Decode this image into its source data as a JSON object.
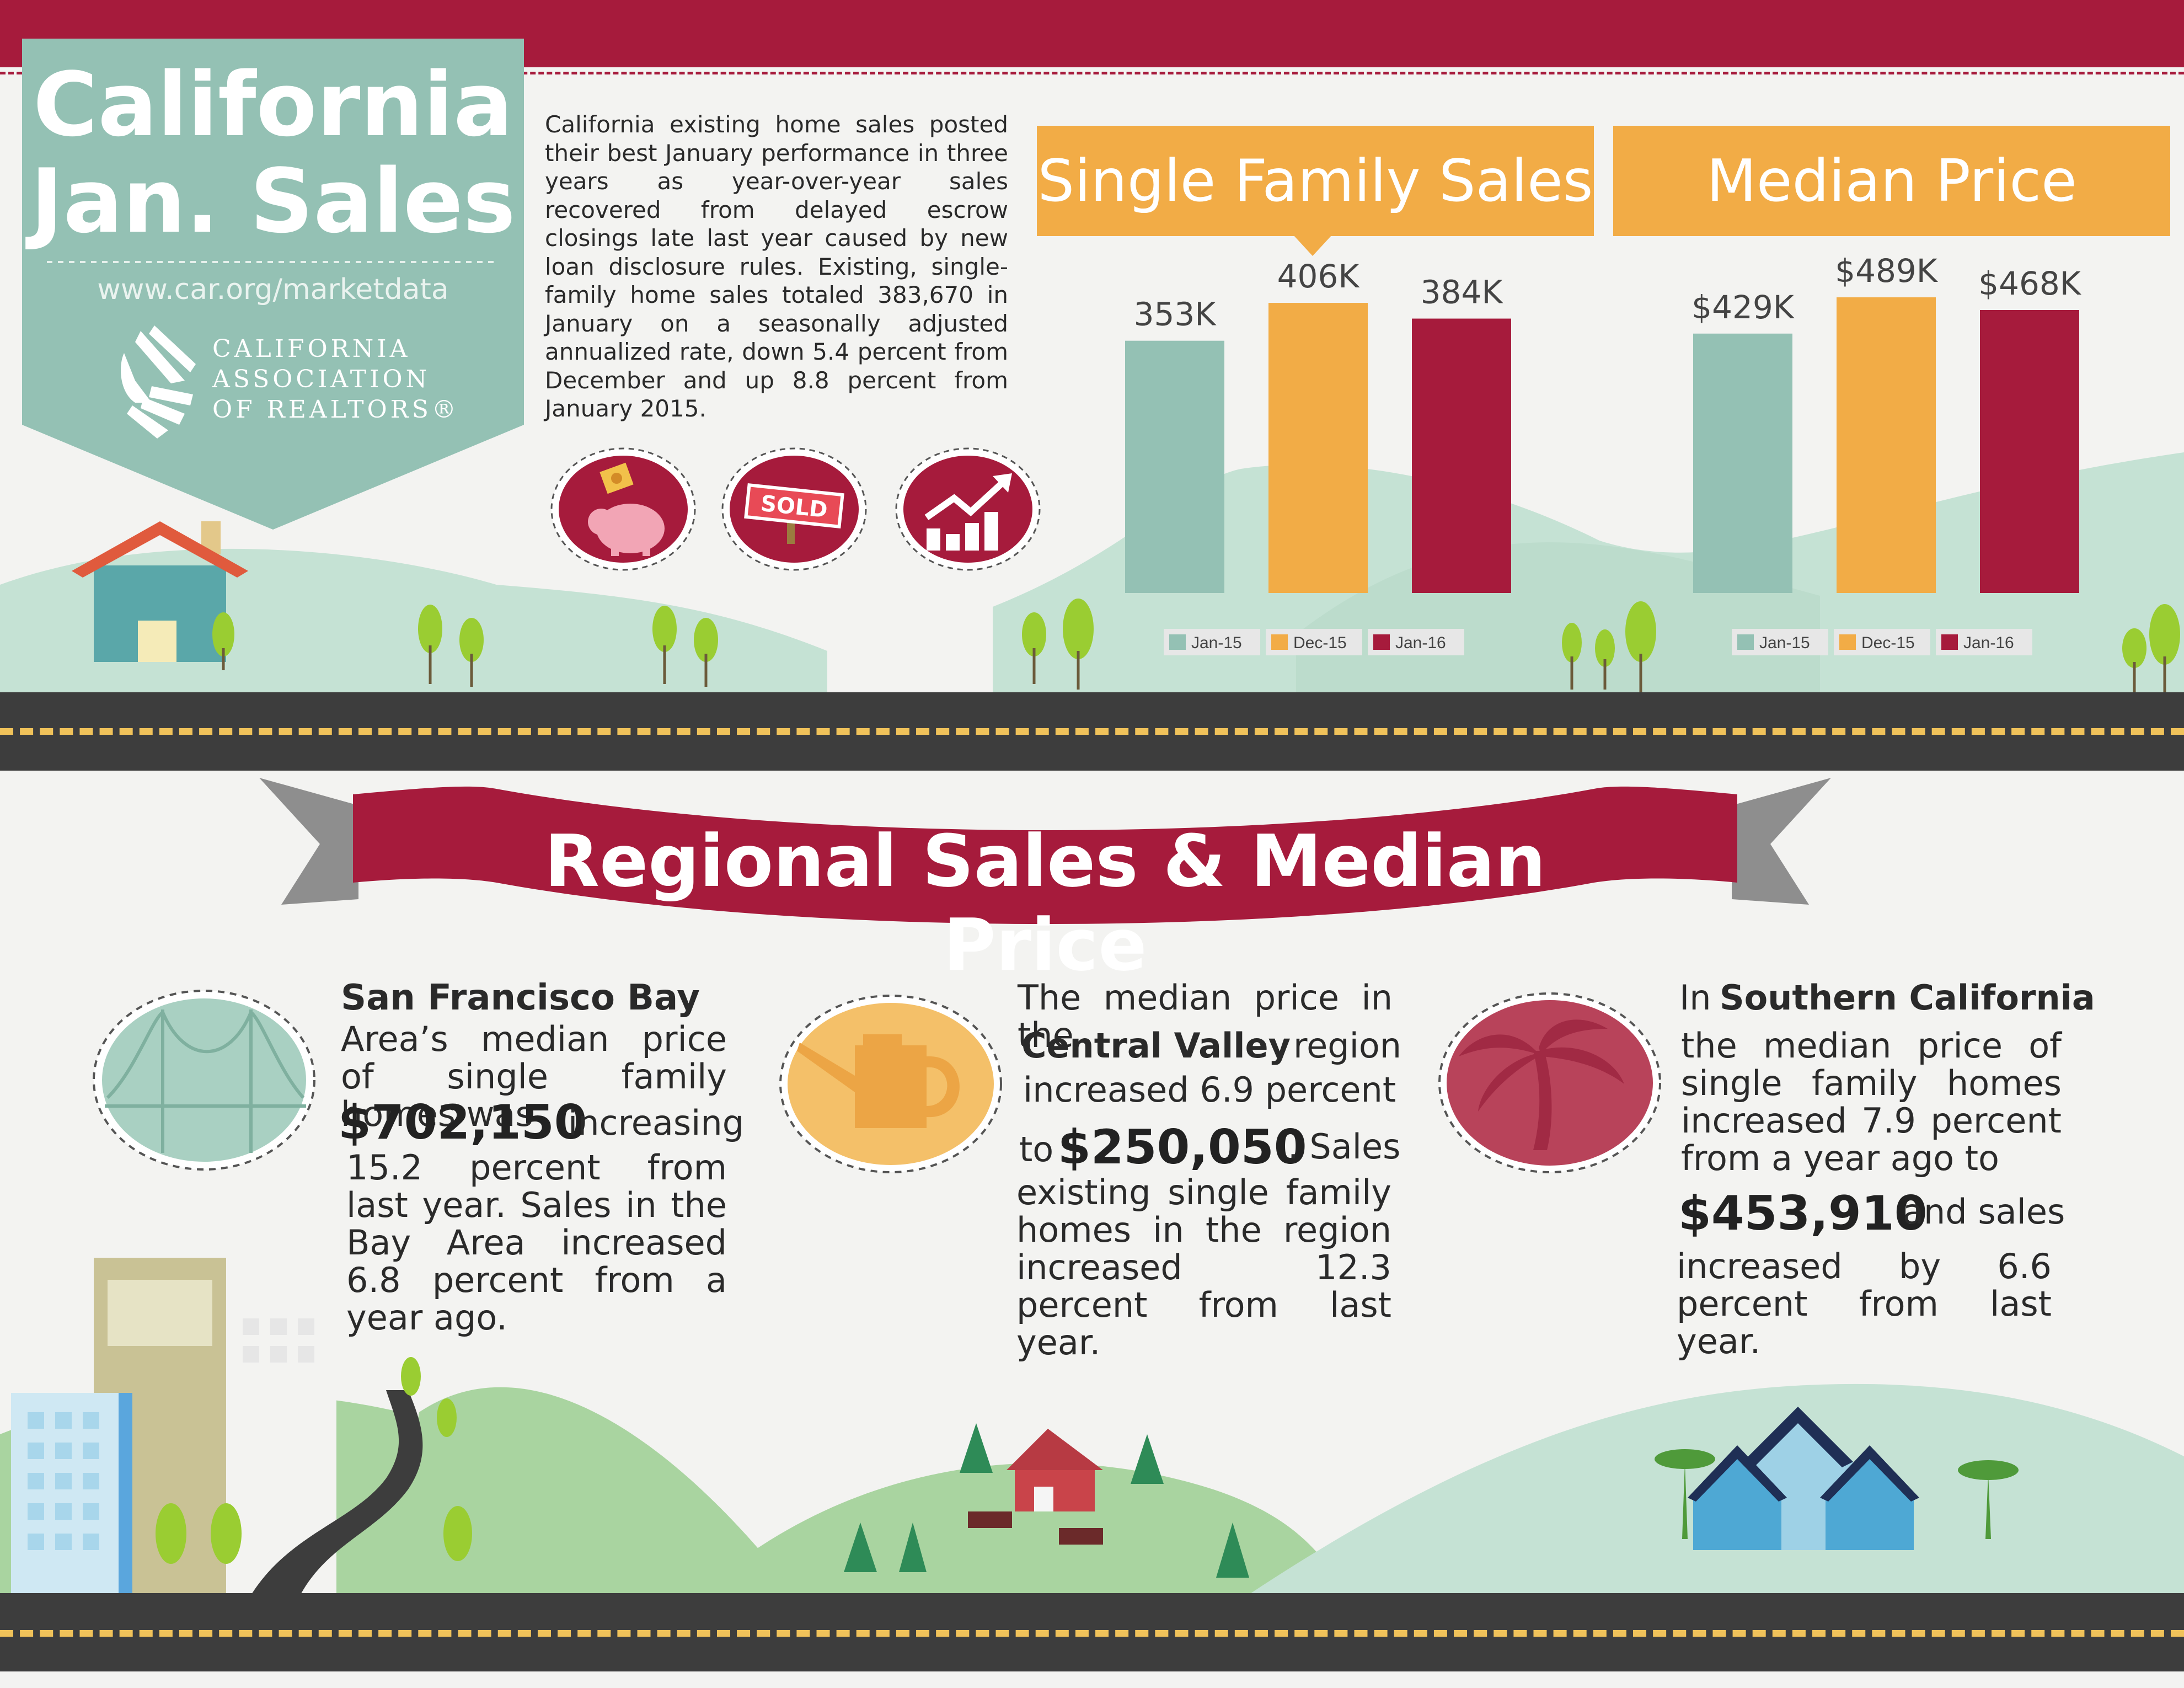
{
  "header": {
    "title_line1": "California",
    "title_line2": "Jan. Sales",
    "url": "www.car.org/marketdata",
    "logo_line1": "CALIFORNIA",
    "logo_line2": "ASSOCIATION",
    "logo_line3": "OF REALTORS®"
  },
  "intro": {
    "text": "California existing home sales posted their best January performance in three years as year-over-year sales recovered from delayed escrow closings late last year caused by new loan disclosure rules. Existing, single-family home sales totaled 383,670 in January on a seasonally adjusted annualized rate, down 5.4 percent from December and up 8.8 percent from January 2015."
  },
  "icons": {
    "sold_sign_text": "SOLD"
  },
  "colors": {
    "teal": "#94c1b4",
    "orange": "#f2ac46",
    "crimson": "#a61b3c"
  },
  "chart_data": [
    {
      "type": "bar",
      "title": "Single Family Sales",
      "categories": [
        "Jan-15",
        "Dec-15",
        "Jan-16"
      ],
      "values": [
        353,
        406,
        384
      ],
      "value_labels": [
        "353K",
        "406K",
        "384K"
      ],
      "legend": [
        "Jan-15",
        "Dec-15",
        "Jan-16"
      ],
      "colors": [
        "#94c1b4",
        "#f2ac46",
        "#a61b3c"
      ]
    },
    {
      "type": "bar",
      "title": "Median Price",
      "categories": [
        "Jan-15",
        "Dec-15",
        "Jan-16"
      ],
      "values": [
        429,
        489,
        468
      ],
      "value_labels": [
        "$429K",
        "$489K",
        "$468K"
      ],
      "legend": [
        "Jan-15",
        "Dec-15",
        "Jan-16"
      ],
      "colors": [
        "#94c1b4",
        "#f2ac46",
        "#a61b3c"
      ]
    }
  ],
  "regional": {
    "title": "Regional Sales & Median Price",
    "bay": {
      "name": "San Francisco Bay",
      "text_a": "Area’s median price of single family homes was",
      "price": "$702,150",
      "text_b": "increasing",
      "text_c": "15.2 percent from last year. Sales in the Bay Area increased 6.8 percent from a year ago."
    },
    "central": {
      "intro": "The median price in the",
      "name": "Central Valley",
      "text_a": "region",
      "text_b": "increased 6.9 percent",
      "to": "to",
      "price": "$250,050",
      "text_c": ". Sales",
      "text_d": "existing single family homes in the region increased 12.3 percent from last year."
    },
    "south": {
      "in": "In",
      "name": "Southern California",
      "text_a": "the median price of single family homes increased 7.9 percent from a year ago to",
      "price": "$453,910",
      "text_b": "and sales",
      "text_c": "increased by 6.6 percent from last year."
    }
  }
}
